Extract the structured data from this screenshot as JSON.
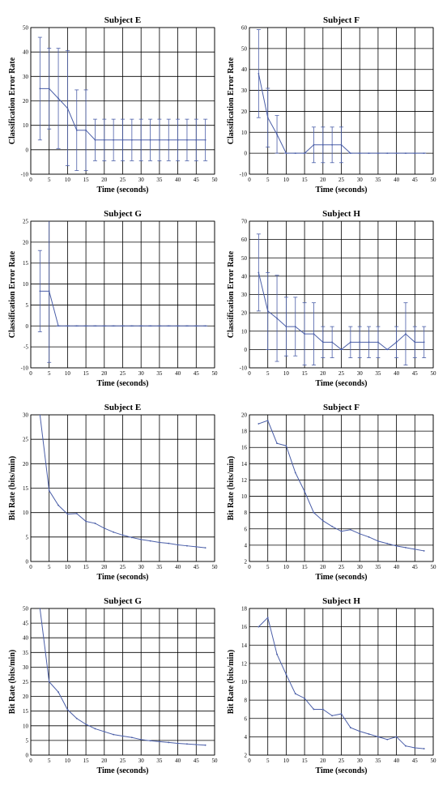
{
  "colors": {
    "series": "#4a5ea8",
    "grid": "#000000"
  },
  "chart_data": [
    {
      "type": "line",
      "error_bars": true,
      "grid": true,
      "title": "Subject E",
      "xlabel": "Time (seconds)",
      "ylabel": "Classification Error Rate",
      "xlim": [
        0,
        50
      ],
      "ylim": [
        -10,
        50
      ],
      "xticks": [
        "0",
        "5",
        "10",
        "15",
        "20",
        "25",
        "30",
        "35",
        "40",
        "45",
        "50"
      ],
      "yticks": [
        "-10",
        "0",
        "10",
        "20",
        "30",
        "40",
        "50"
      ],
      "series": [
        {
          "x": [
            2.5,
            5,
            7.5,
            10,
            12.5,
            15,
            17.5,
            20,
            22.5,
            25,
            27.5,
            30,
            32.5,
            35,
            37.5,
            40,
            42.5,
            45,
            47.5
          ],
          "y": [
            25,
            25,
            21,
            17,
            8,
            8,
            4,
            4,
            4,
            4,
            4,
            4,
            4,
            4,
            4,
            4,
            4,
            4,
            4
          ],
          "err": [
            21,
            16.5,
            20.5,
            23.5,
            16.5,
            16.5,
            8.5,
            8.5,
            8.5,
            8.5,
            8.5,
            8.5,
            8.5,
            8.5,
            8.5,
            8.5,
            8.5,
            8.5,
            8.5
          ]
        }
      ]
    },
    {
      "type": "line",
      "error_bars": true,
      "grid": true,
      "title": "Subject F",
      "xlabel": "Time (seconds)",
      "ylabel": "Classification Error Rate",
      "xlim": [
        0,
        50
      ],
      "ylim": [
        -10,
        60
      ],
      "xticks": [
        "0",
        "5",
        "10",
        "15",
        "20",
        "25",
        "30",
        "35",
        "40",
        "45",
        "50"
      ],
      "yticks": [
        "-10",
        "0",
        "10",
        "20",
        "30",
        "40",
        "50",
        "60"
      ],
      "series": [
        {
          "x": [
            2.5,
            5,
            7.5,
            10,
            12.5,
            15,
            17.5,
            20,
            22.5,
            25,
            27.5,
            30,
            32.5,
            35,
            37.5,
            40,
            42.5,
            45,
            47.5
          ],
          "y": [
            38,
            17,
            9,
            0,
            0,
            0,
            4,
            4,
            4,
            4,
            0,
            0,
            0,
            0,
            0,
            0,
            0,
            0,
            0
          ],
          "err": [
            21,
            14,
            9,
            0,
            0,
            0,
            8.5,
            8.5,
            8.5,
            8.5,
            0,
            0,
            0,
            0,
            0,
            0,
            0,
            0,
            0
          ]
        }
      ]
    },
    {
      "type": "line",
      "error_bars": true,
      "grid": true,
      "title": "Subject G",
      "xlabel": "Time (seconds)",
      "ylabel": "Classification Error Rate",
      "xlim": [
        0,
        50
      ],
      "ylim": [
        -10,
        25
      ],
      "xticks": [
        "0",
        "5",
        "10",
        "15",
        "20",
        "25",
        "30",
        "35",
        "40",
        "45",
        "50"
      ],
      "yticks": [
        "-10",
        "-5",
        "0",
        "5",
        "10",
        "15",
        "20",
        "25"
      ],
      "series": [
        {
          "x": [
            2.5,
            5,
            7.5,
            10,
            12.5,
            15,
            17.5,
            20,
            22.5,
            25,
            27.5,
            30,
            32.5,
            35,
            37.5,
            40,
            42.5,
            45,
            47.5
          ],
          "y": [
            8.3,
            8.3,
            0,
            0,
            0,
            0,
            0,
            0,
            0,
            0,
            0,
            0,
            0,
            0,
            0,
            0,
            0,
            0,
            0
          ],
          "err": [
            9.7,
            17,
            0,
            0,
            0,
            0,
            0,
            0,
            0,
            0,
            0,
            0,
            0,
            0,
            0,
            0,
            0,
            0,
            0
          ]
        }
      ]
    },
    {
      "type": "line",
      "error_bars": true,
      "grid": true,
      "title": "Subject H",
      "xlabel": "Time (seconds)",
      "ylabel": "Classification Error Rate",
      "xlim": [
        0,
        50
      ],
      "ylim": [
        -10,
        70
      ],
      "xticks": [
        "0",
        "5",
        "10",
        "15",
        "20",
        "25",
        "30",
        "35",
        "40",
        "45",
        "50"
      ],
      "yticks": [
        "-10",
        "0",
        "10",
        "20",
        "30",
        "40",
        "50",
        "60",
        "70"
      ],
      "series": [
        {
          "x": [
            2.5,
            5,
            7.5,
            10,
            12.5,
            15,
            17.5,
            20,
            22.5,
            25,
            27.5,
            30,
            32.5,
            35,
            37.5,
            40,
            42.5,
            45,
            47.5
          ],
          "y": [
            42,
            21,
            17,
            12.5,
            12.5,
            8.5,
            8.5,
            4,
            4,
            0,
            4,
            4,
            4,
            4,
            0,
            4,
            8.5,
            4,
            4
          ],
          "err": [
            21,
            21,
            23.5,
            16,
            16,
            17,
            17,
            8.5,
            8.5,
            0,
            8.5,
            8.5,
            8.5,
            8.5,
            0,
            8.5,
            17,
            8.5,
            8.5
          ]
        }
      ]
    },
    {
      "type": "line",
      "grid": true,
      "title": "Subject E",
      "xlabel": "Time (seconds)",
      "ylabel": "Bit Rate (bits/min)",
      "xlim": [
        0,
        50
      ],
      "ylim": [
        0,
        30
      ],
      "xticks": [
        "0",
        "5",
        "10",
        "15",
        "20",
        "25",
        "30",
        "35",
        "40",
        "45",
        "50"
      ],
      "yticks": [
        "0",
        "5",
        "10",
        "15",
        "20",
        "25",
        "30"
      ],
      "series": [
        {
          "x": [
            2.5,
            5,
            7.5,
            10,
            12.5,
            15,
            17.5,
            20,
            22.5,
            25,
            27.5,
            30,
            32.5,
            35,
            37.5,
            40,
            42.5,
            45,
            47.5
          ],
          "y": [
            30,
            14.5,
            11.5,
            9.7,
            9.8,
            8.2,
            7.8,
            6.8,
            6,
            5.4,
            4.9,
            4.5,
            4.2,
            3.9,
            3.7,
            3.4,
            3.2,
            3,
            2.8
          ]
        }
      ]
    },
    {
      "type": "line",
      "grid": true,
      "title": "Subject F",
      "xlabel": "Time (seconds)",
      "ylabel": "Bit Rate (bits/min)",
      "xlim": [
        0,
        50
      ],
      "ylim": [
        2,
        20
      ],
      "xticks": [
        "0",
        "5",
        "10",
        "15",
        "20",
        "25",
        "30",
        "35",
        "40",
        "45",
        "50"
      ],
      "yticks": [
        "2",
        "4",
        "6",
        "8",
        "10",
        "12",
        "14",
        "16",
        "18",
        "20"
      ],
      "series": [
        {
          "x": [
            2.5,
            5,
            7.5,
            10,
            12.5,
            15,
            17.5,
            20,
            22.5,
            25,
            27.5,
            30,
            32.5,
            35,
            37.5,
            40,
            42.5,
            45,
            47.5
          ],
          "y": [
            18.9,
            19.3,
            16.5,
            16.2,
            12.9,
            10.6,
            8,
            7,
            6.3,
            5.7,
            5.9,
            5.4,
            5,
            4.5,
            4.2,
            3.9,
            3.7,
            3.5,
            3.3
          ]
        }
      ]
    },
    {
      "type": "line",
      "grid": true,
      "title": "Subject G",
      "xlabel": "Time (seconds)",
      "ylabel": "Bit Rate (bits/min)",
      "xlim": [
        0,
        50
      ],
      "ylim": [
        0,
        50
      ],
      "xticks": [
        "0",
        "5",
        "10",
        "15",
        "20",
        "25",
        "30",
        "35",
        "40",
        "45",
        "50"
      ],
      "yticks": [
        "0",
        "5",
        "10",
        "15",
        "20",
        "25",
        "30",
        "35",
        "40",
        "45",
        "50"
      ],
      "series": [
        {
          "x": [
            2.5,
            5,
            7.5,
            10,
            12.5,
            15,
            17.5,
            20,
            22.5,
            25,
            27.5,
            30,
            32.5,
            35,
            37.5,
            40,
            42.5,
            45,
            47.5
          ],
          "y": [
            50,
            25,
            21.5,
            15.5,
            12.5,
            10.5,
            9,
            8,
            7,
            6.5,
            6,
            5.3,
            4.9,
            4.6,
            4.3,
            4,
            3.8,
            3.6,
            3.4
          ]
        }
      ]
    },
    {
      "type": "line",
      "grid": true,
      "title": "Subject H",
      "xlabel": "Time (seconds)",
      "ylabel": "Bit Rate (bits/min)",
      "xlim": [
        0,
        50
      ],
      "ylim": [
        2,
        18
      ],
      "xticks": [
        "0",
        "5",
        "10",
        "15",
        "20",
        "25",
        "30",
        "35",
        "40",
        "45",
        "50"
      ],
      "yticks": [
        "2",
        "4",
        "6",
        "8",
        "10",
        "12",
        "14",
        "16",
        "18"
      ],
      "series": [
        {
          "x": [
            2.5,
            5,
            7.5,
            10,
            12.5,
            15,
            17.5,
            20,
            22.5,
            25,
            27.5,
            30,
            32.5,
            35,
            37.5,
            40,
            42.5,
            45,
            47.5
          ],
          "y": [
            16,
            17,
            13,
            10.8,
            8.7,
            8.2,
            7,
            7,
            6.3,
            6.5,
            5,
            4.6,
            4.3,
            4,
            3.7,
            4,
            3,
            2.8,
            2.7
          ]
        }
      ]
    }
  ]
}
